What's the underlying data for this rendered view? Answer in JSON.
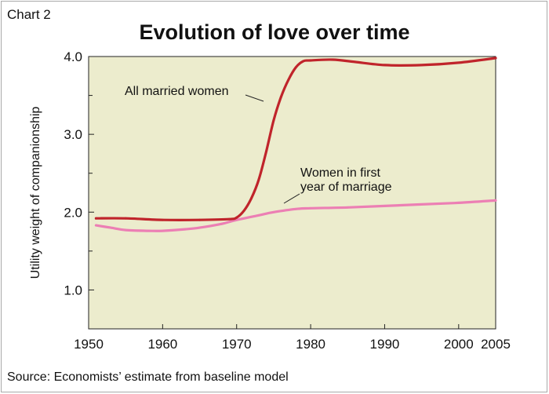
{
  "header": {
    "chart_label": "Chart 2",
    "title": "Evolution of love over time"
  },
  "footer": {
    "source": "Source: Economists’ estimate from baseline model"
  },
  "colors": {
    "plot_background": "#ececcd",
    "married_line": "#c0242b",
    "first_year_line": "#ec7fb4",
    "axis": "#222222"
  },
  "chart_data": {
    "type": "line",
    "title": "Evolution of love over time",
    "xlabel": "",
    "ylabel": "Utility weight of companionship",
    "xlim": [
      1950,
      2005
    ],
    "ylim": [
      0.5,
      4.0
    ],
    "x_ticks": [
      1950,
      1960,
      1970,
      1980,
      1990,
      2000,
      2005
    ],
    "y_ticks": [
      {
        "value": 1.0,
        "label": "1.0"
      },
      {
        "value": 2.0,
        "label": "2.0"
      },
      {
        "value": 3.0,
        "label": "3.0"
      },
      {
        "value": 4.0,
        "label": "4.0"
      }
    ],
    "y_minor_ticks": [
      1.5,
      2.5,
      3.5
    ],
    "grid": false,
    "series": [
      {
        "name": "All married women",
        "color": "#c0242b",
        "x": [
          1951,
          1955,
          1960,
          1965,
          1969,
          1970,
          1971,
          1972,
          1973,
          1974,
          1975,
          1976,
          1977,
          1978,
          1979,
          1980,
          1983,
          1986,
          1990,
          1995,
          2000,
          2005
        ],
        "y": [
          1.92,
          1.92,
          1.9,
          1.9,
          1.91,
          1.93,
          2.02,
          2.18,
          2.42,
          2.78,
          3.18,
          3.48,
          3.7,
          3.86,
          3.94,
          3.95,
          3.96,
          3.93,
          3.89,
          3.89,
          3.92,
          3.98
        ]
      },
      {
        "name": "Women in first year of marriage",
        "color": "#ec7fb4",
        "x": [
          1951,
          1953,
          1955,
          1958,
          1960,
          1963,
          1965,
          1968,
          1970,
          1973,
          1975,
          1978,
          1980,
          1985,
          1990,
          1995,
          2000,
          2005
        ],
        "y": [
          1.83,
          1.8,
          1.77,
          1.76,
          1.76,
          1.78,
          1.8,
          1.85,
          1.9,
          1.96,
          2.0,
          2.04,
          2.05,
          2.06,
          2.08,
          2.1,
          2.12,
          2.15
        ]
      }
    ],
    "annotations": [
      {
        "lines": [
          "All married women"
        ],
        "series": "All married women"
      },
      {
        "lines": [
          "Women in first",
          "year of marriage"
        ],
        "series": "Women in first year of marriage"
      }
    ]
  }
}
